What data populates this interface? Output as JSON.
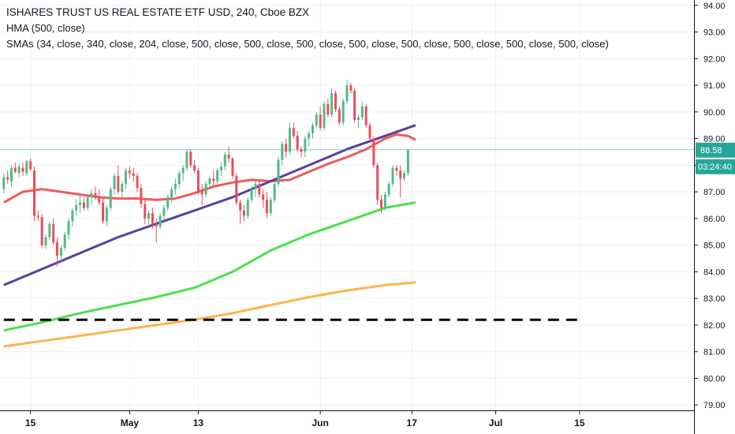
{
  "legend": {
    "title": "ISHARES TRUST US REAL ESTATE ETF USD, 240, Cboe BZX",
    "hma": "HMA (500, close)",
    "smas": "SMAs (34, close, 340, close, 204, close, 500, close, 500, close, 500, close, 500, close, 500, close, 500, close, 500, close, 500, close)"
  },
  "colors": {
    "up": "#53b987",
    "down": "#eb4d5c",
    "hma": "#f05a5a",
    "sma34": "#5b3f9a",
    "sma204": "#4ee04e",
    "sma340": "#ffb24e",
    "last_price": "#26a69a",
    "support": "#000000"
  },
  "price_tag": {
    "price": "88.58",
    "countdown": "03:24:40"
  },
  "chart_data": {
    "type": "candlestick",
    "title": "ISHARES TRUST US REAL ESTATE ETF USD, 240, Cboe BZX",
    "ylim": [
      78.8,
      94.2
    ],
    "y_ticks": [
      "79.00",
      "80.00",
      "81.00",
      "82.00",
      "83.00",
      "84.00",
      "85.00",
      "86.00",
      "87.00",
      "88.00",
      "89.00",
      "90.00",
      "91.00",
      "92.00",
      "93.00",
      "94.00"
    ],
    "x_ticks": [
      {
        "label": "15",
        "index": 7
      },
      {
        "label": "May",
        "index": 33
      },
      {
        "label": "13",
        "index": 51
      },
      {
        "label": "Jun",
        "index": 83
      },
      {
        "label": "17",
        "index": 107
      },
      {
        "label": "Jul",
        "index": 129
      },
      {
        "label": "15",
        "index": 151
      }
    ],
    "x_range": [
      -1,
      181
    ],
    "last_price": 88.58,
    "support_level": 82.2,
    "support_range": [
      0,
      152
    ],
    "candles": [
      [
        87.1,
        87.7,
        86.95,
        87.55
      ],
      [
        87.55,
        87.8,
        87.3,
        87.45
      ],
      [
        87.4,
        88.0,
        87.2,
        87.9
      ],
      [
        87.9,
        88.1,
        87.7,
        87.75
      ],
      [
        87.7,
        88.05,
        87.55,
        87.95
      ],
      [
        87.9,
        88.1,
        87.6,
        87.75
      ],
      [
        87.7,
        88.2,
        87.6,
        88.15
      ],
      [
        88.15,
        88.25,
        87.8,
        87.85
      ],
      [
        87.8,
        87.95,
        85.9,
        86.1
      ],
      [
        86.1,
        86.3,
        85.9,
        86.05
      ],
      [
        86.05,
        86.15,
        84.9,
        85.0
      ],
      [
        85.0,
        85.4,
        84.85,
        85.3
      ],
      [
        85.3,
        85.9,
        85.2,
        85.8
      ],
      [
        85.8,
        86.0,
        85.0,
        85.1
      ],
      [
        85.1,
        85.3,
        84.2,
        84.6
      ],
      [
        84.6,
        85.0,
        84.4,
        84.9
      ],
      [
        84.9,
        85.5,
        84.8,
        85.4
      ],
      [
        85.4,
        86.0,
        85.2,
        85.9
      ],
      [
        85.9,
        86.4,
        85.7,
        86.3
      ],
      [
        86.3,
        86.7,
        86.1,
        86.5
      ],
      [
        86.5,
        86.9,
        86.2,
        86.6
      ],
      [
        86.6,
        86.8,
        86.3,
        86.4
      ],
      [
        86.4,
        86.9,
        86.3,
        86.8
      ],
      [
        86.8,
        87.1,
        86.5,
        86.95
      ],
      [
        86.95,
        87.2,
        86.7,
        86.85
      ],
      [
        86.85,
        87.1,
        86.5,
        86.6
      ],
      [
        86.6,
        86.8,
        85.8,
        85.9
      ],
      [
        85.9,
        86.5,
        85.7,
        86.4
      ],
      [
        86.4,
        87.2,
        86.3,
        87.1
      ],
      [
        87.1,
        87.7,
        86.9,
        87.6
      ],
      [
        87.6,
        88.0,
        86.9,
        87.0
      ],
      [
        87.0,
        87.4,
        86.7,
        87.3
      ],
      [
        87.3,
        87.9,
        87.1,
        87.8
      ],
      [
        87.8,
        87.95,
        87.5,
        87.7
      ],
      [
        87.7,
        87.9,
        87.4,
        87.6
      ],
      [
        87.6,
        87.7,
        87.0,
        87.15
      ],
      [
        87.15,
        87.3,
        86.4,
        86.55
      ],
      [
        86.55,
        86.7,
        85.8,
        86.0
      ],
      [
        86.0,
        86.3,
        85.7,
        86.2
      ],
      [
        86.2,
        86.4,
        85.6,
        85.8
      ],
      [
        85.8,
        86.0,
        85.1,
        85.7
      ],
      [
        85.7,
        86.2,
        85.6,
        86.1
      ],
      [
        86.1,
        86.5,
        85.9,
        86.4
      ],
      [
        86.4,
        86.9,
        86.3,
        86.8
      ],
      [
        86.8,
        87.2,
        86.6,
        87.1
      ],
      [
        87.1,
        87.5,
        86.9,
        87.3
      ],
      [
        87.3,
        87.8,
        87.1,
        87.7
      ],
      [
        87.7,
        88.0,
        87.4,
        87.9
      ],
      [
        87.9,
        88.6,
        87.8,
        88.5
      ],
      [
        88.5,
        88.6,
        87.9,
        88.0
      ],
      [
        88.0,
        88.2,
        87.7,
        87.8
      ],
      [
        87.8,
        87.9,
        86.9,
        87.0
      ],
      [
        87.0,
        87.3,
        86.5,
        86.9
      ],
      [
        86.9,
        87.4,
        86.8,
        87.3
      ],
      [
        87.3,
        87.6,
        87.1,
        87.5
      ],
      [
        87.5,
        87.8,
        87.2,
        87.4
      ],
      [
        87.4,
        87.9,
        87.3,
        87.8
      ],
      [
        87.8,
        88.1,
        87.6,
        87.95
      ],
      [
        87.95,
        88.5,
        87.8,
        88.4
      ],
      [
        88.4,
        88.7,
        88.1,
        88.25
      ],
      [
        88.25,
        88.3,
        87.5,
        87.6
      ],
      [
        87.6,
        87.7,
        86.5,
        86.6
      ],
      [
        86.6,
        86.7,
        85.8,
        86.3
      ],
      [
        86.3,
        86.5,
        85.9,
        86.1
      ],
      [
        86.1,
        86.8,
        86.0,
        86.7
      ],
      [
        86.7,
        87.2,
        86.6,
        87.1
      ],
      [
        87.1,
        87.4,
        86.8,
        87.3
      ],
      [
        87.3,
        87.4,
        86.8,
        86.9
      ],
      [
        86.9,
        87.1,
        86.4,
        86.7
      ],
      [
        86.7,
        87.0,
        86.0,
        86.2
      ],
      [
        86.2,
        86.8,
        86.1,
        86.7
      ],
      [
        86.7,
        87.4,
        86.6,
        87.3
      ],
      [
        87.3,
        88.3,
        87.2,
        88.2
      ],
      [
        88.2,
        88.9,
        88.0,
        88.8
      ],
      [
        88.8,
        89.0,
        88.3,
        88.5
      ],
      [
        88.5,
        89.6,
        88.4,
        89.4
      ],
      [
        89.4,
        89.6,
        89.0,
        89.1
      ],
      [
        89.1,
        89.3,
        88.5,
        88.6
      ],
      [
        88.6,
        88.7,
        88.3,
        88.5
      ],
      [
        88.5,
        89.1,
        88.3,
        89.0
      ],
      [
        89.0,
        89.3,
        88.7,
        89.2
      ],
      [
        89.2,
        89.6,
        89.0,
        89.5
      ],
      [
        89.5,
        90.0,
        89.4,
        89.9
      ],
      [
        89.9,
        90.2,
        89.3,
        89.4
      ],
      [
        89.4,
        90.4,
        89.3,
        90.3
      ],
      [
        90.3,
        90.5,
        89.8,
        89.9
      ],
      [
        89.9,
        90.9,
        89.8,
        90.7
      ],
      [
        90.7,
        90.8,
        90.0,
        90.1
      ],
      [
        90.1,
        90.2,
        89.5,
        89.6
      ],
      [
        89.6,
        90.5,
        89.5,
        90.4
      ],
      [
        90.4,
        91.2,
        90.3,
        91.0
      ],
      [
        91.0,
        91.1,
        90.7,
        90.8
      ],
      [
        90.8,
        90.9,
        89.6,
        89.7
      ],
      [
        89.7,
        89.9,
        89.4,
        89.8
      ],
      [
        89.8,
        90.4,
        89.7,
        90.2
      ],
      [
        90.2,
        90.3,
        89.4,
        89.5
      ],
      [
        89.5,
        89.6,
        88.9,
        89.0
      ],
      [
        89.0,
        89.1,
        87.9,
        88.0
      ],
      [
        88.0,
        88.1,
        86.5,
        86.7
      ],
      [
        86.7,
        86.9,
        86.2,
        86.4
      ],
      [
        86.4,
        87.0,
        86.3,
        86.9
      ],
      [
        86.9,
        87.4,
        86.8,
        87.3
      ],
      [
        87.3,
        88.0,
        87.2,
        87.9
      ],
      [
        87.9,
        88.0,
        87.6,
        87.8
      ],
      [
        87.8,
        88.0,
        86.8,
        87.5
      ],
      [
        87.5,
        87.8,
        87.4,
        87.7
      ],
      [
        87.7,
        88.6,
        87.6,
        88.58
      ]
    ],
    "candle_index_map": [
      0,
      1,
      2,
      3,
      4,
      5,
      6,
      7,
      8,
      9,
      10,
      11,
      12,
      13,
      14,
      15,
      16,
      17,
      18,
      19,
      20,
      21,
      22,
      23,
      24,
      25,
      26,
      27,
      28,
      29,
      30,
      31,
      32,
      33,
      34,
      35,
      36,
      37,
      38,
      39,
      40,
      41,
      42,
      43,
      44,
      45,
      46,
      47,
      48,
      49,
      50,
      51,
      52,
      53,
      54,
      55,
      56,
      57,
      58,
      59,
      60,
      61,
      62,
      63,
      64,
      65,
      66,
      67,
      68,
      69,
      70,
      71,
      72,
      73,
      74,
      75,
      76,
      77,
      78,
      79,
      80,
      81,
      82,
      83,
      84,
      85,
      86,
      87,
      88,
      89,
      90,
      91,
      92,
      93,
      94,
      95,
      96,
      97,
      98,
      99,
      100,
      101,
      102,
      103,
      104,
      105,
      106
    ],
    "series": [
      {
        "name": "HMA (500, close)",
        "color_key": "hma",
        "points": [
          [
            0,
            86.6
          ],
          [
            5,
            87.0
          ],
          [
            10,
            87.1
          ],
          [
            15,
            87.0
          ],
          [
            20,
            86.9
          ],
          [
            25,
            86.8
          ],
          [
            30,
            86.75
          ],
          [
            35,
            86.75
          ],
          [
            40,
            86.7
          ],
          [
            45,
            86.75
          ],
          [
            50,
            86.95
          ],
          [
            55,
            87.2
          ],
          [
            60,
            87.35
          ],
          [
            65,
            87.45
          ],
          [
            70,
            87.4
          ],
          [
            75,
            87.45
          ],
          [
            80,
            87.75
          ],
          [
            85,
            88.05
          ],
          [
            90,
            88.3
          ],
          [
            95,
            88.6
          ],
          [
            100,
            89.0
          ],
          [
            103,
            89.15
          ],
          [
            106,
            89.1
          ],
          [
            108,
            88.95
          ]
        ]
      },
      {
        "name": "SMA 34",
        "color_key": "sma34",
        "points": [
          [
            0,
            83.5
          ],
          [
            10,
            84.1
          ],
          [
            20,
            84.7
          ],
          [
            30,
            85.3
          ],
          [
            40,
            85.8
          ],
          [
            50,
            86.3
          ],
          [
            60,
            86.8
          ],
          [
            70,
            87.4
          ],
          [
            80,
            88.0
          ],
          [
            90,
            88.6
          ],
          [
            100,
            89.1
          ],
          [
            108,
            89.5
          ]
        ]
      },
      {
        "name": "SMA 204",
        "color_key": "sma204",
        "points": [
          [
            0,
            81.8
          ],
          [
            10,
            82.1
          ],
          [
            20,
            82.45
          ],
          [
            30,
            82.75
          ],
          [
            40,
            83.05
          ],
          [
            50,
            83.4
          ],
          [
            60,
            84.0
          ],
          [
            70,
            84.8
          ],
          [
            80,
            85.4
          ],
          [
            90,
            85.9
          ],
          [
            100,
            86.4
          ],
          [
            108,
            86.6
          ]
        ]
      },
      {
        "name": "SMA 340",
        "color_key": "sma340",
        "points": [
          [
            0,
            81.2
          ],
          [
            10,
            81.4
          ],
          [
            20,
            81.6
          ],
          [
            30,
            81.8
          ],
          [
            40,
            82.0
          ],
          [
            50,
            82.2
          ],
          [
            60,
            82.45
          ],
          [
            70,
            82.75
          ],
          [
            80,
            83.05
          ],
          [
            90,
            83.3
          ],
          [
            100,
            83.5
          ],
          [
            108,
            83.6
          ]
        ]
      }
    ]
  }
}
